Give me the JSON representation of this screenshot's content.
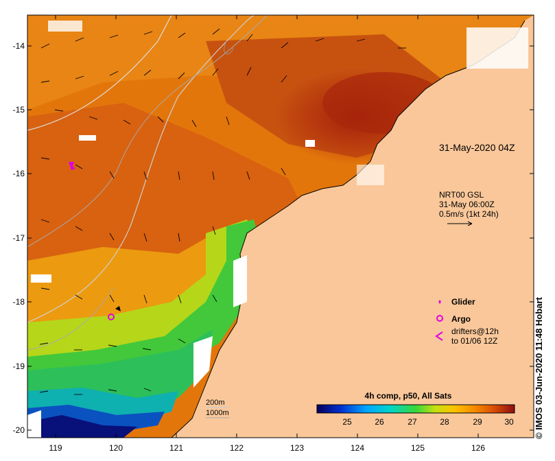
{
  "timestamp_title": "31-May-2020 04Z",
  "current_info": {
    "line1": "NRT00 GSL",
    "line2": "31-May 06:00Z",
    "line3": "0.5m/s (1kt 24h)"
  },
  "legend": {
    "glider": "Glider",
    "argo": "Argo",
    "drifters_line1": "drifters@12h",
    "drifters_line2": "to 01/06 12Z"
  },
  "isobaths": {
    "a": "200m",
    "b": "1000m"
  },
  "colorbar": {
    "title": "4h comp, p50, All Sats",
    "ticks": [
      "25",
      "26",
      "27",
      "28",
      "29",
      "30"
    ]
  },
  "y_ticks": [
    "-14",
    "-15",
    "-16",
    "-17",
    "-18",
    "-19",
    "-20"
  ],
  "x_ticks": [
    "119",
    "120",
    "121",
    "122",
    "123",
    "124",
    "125",
    "126"
  ],
  "credit": "© IMOS 03-Jun-2020 11:48 Hobart",
  "colors": {
    "land": "#f9c79a",
    "sst_hot": "#b82a0c",
    "sst_warm": "#e0700a",
    "sst_mid": "#f5a10a",
    "sst_green": "#2fd53b",
    "sst_cool": "#0a3fb0",
    "glider": "#e000e0"
  }
}
